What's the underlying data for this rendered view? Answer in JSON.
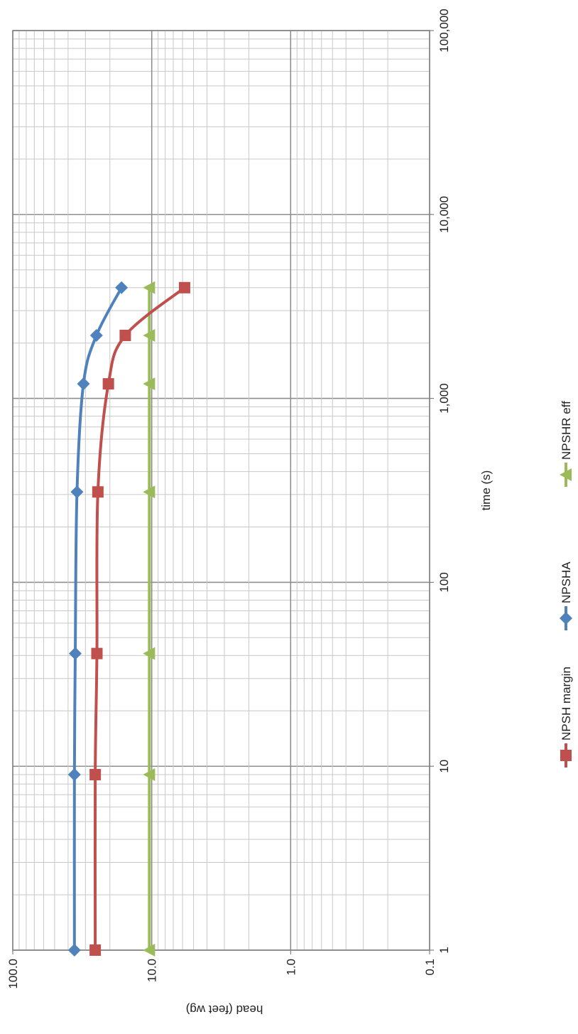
{
  "chart_data": {
    "type": "line",
    "title": "",
    "orientation": "rotated-90-clockwise",
    "xlabel": "time (s)",
    "ylabel": "head (feet wg)",
    "x_scale": "log",
    "y_scale": "log",
    "xlim": [
      1,
      100000
    ],
    "ylim": [
      0.1,
      100
    ],
    "x_ticks": [
      {
        "value": 1,
        "label": "1"
      },
      {
        "value": 10,
        "label": "10"
      },
      {
        "value": 100,
        "label": "100"
      },
      {
        "value": 1000,
        "label": "1,000"
      },
      {
        "value": 10000,
        "label": "10,000"
      },
      {
        "value": 100000,
        "label": "100,000"
      }
    ],
    "y_ticks": [
      {
        "value": 0.1,
        "label": "0.1"
      },
      {
        "value": 1,
        "label": "1.0"
      },
      {
        "value": 10,
        "label": "10.0"
      },
      {
        "value": 100,
        "label": "100.0"
      }
    ],
    "grid": true,
    "legend_position": "bottom",
    "series": [
      {
        "name": "NPSH margin",
        "color": "#c0504d",
        "marker": "square",
        "points": [
          [
            1,
            25.5
          ],
          [
            9,
            25.5
          ],
          [
            41,
            24.8
          ],
          [
            310,
            24.4
          ],
          [
            1200,
            20.5
          ],
          [
            2200,
            15.5
          ],
          [
            4000,
            5.8
          ]
        ]
      },
      {
        "name": "NPSHA",
        "color": "#4f81bd",
        "marker": "diamond",
        "points": [
          [
            1,
            36.0
          ],
          [
            9,
            36.0
          ],
          [
            41,
            35.5
          ],
          [
            310,
            34.5
          ],
          [
            1200,
            31.0
          ],
          [
            2200,
            25.0
          ],
          [
            4000,
            16.5
          ]
        ]
      },
      {
        "name": "NPSHR eff",
        "color": "#9bbb59",
        "marker": "triangle",
        "points": [
          [
            1,
            10.4
          ],
          [
            9,
            10.4
          ],
          [
            41,
            10.4
          ],
          [
            310,
            10.4
          ],
          [
            1200,
            10.4
          ],
          [
            2200,
            10.4
          ],
          [
            4000,
            10.4
          ]
        ]
      }
    ]
  }
}
